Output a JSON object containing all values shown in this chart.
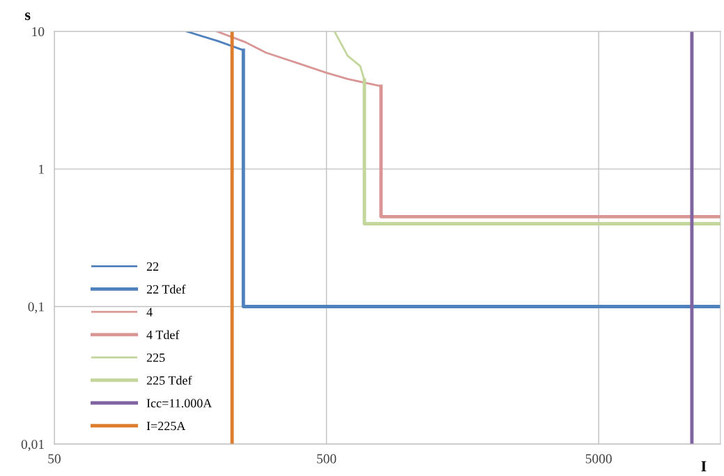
{
  "chart_data": {
    "type": "line",
    "xlabel": "I",
    "ylabel": "s",
    "log": "xy",
    "grid": true,
    "legend": "bottom left",
    "marker": "none",
    "line_style": "solid",
    "xlim": [
      50,
      14000
    ],
    "xticks": [
      50,
      500,
      5000
    ],
    "ylim": [
      0.01,
      10
    ],
    "yticks": [
      {
        "value": 0.01,
        "label": "0,01"
      },
      {
        "value": 0.1,
        "label": "0,1"
      },
      1,
      10
    ],
    "series": [
      {
        "name": "22",
        "color": "#4f81bd",
        "x": [
          153,
          200,
          247.5
        ],
        "values": [
          10,
          8.5,
          7.3
        ]
      },
      {
        "name": "22 Tdef",
        "color": "#4f81bd",
        "x": [
          247.5,
          247.5,
          14000
        ],
        "values": [
          7.3,
          0.1,
          0.1
        ]
      },
      {
        "name": "4",
        "color": "#d99694",
        "x": [
          198,
          250,
          300,
          400,
          500,
          600,
          793
        ],
        "values": [
          10,
          8.4,
          7.0,
          5.8,
          5.0,
          4.5,
          4.0
        ]
      },
      {
        "name": "4 Tdef",
        "color": "#d99694",
        "x": [
          793,
          793,
          14000
        ],
        "values": [
          4.0,
          0.45,
          0.45
        ]
      },
      {
        "name": "225",
        "color": "#c3d69b",
        "x": [
          535,
          598,
          665,
          689
        ],
        "values": [
          10,
          6.65,
          5.6,
          4.43
        ]
      },
      {
        "name": "225 Tdef",
        "color": "#c3d69b",
        "x": [
          689,
          689,
          14000
        ],
        "values": [
          4.43,
          0.4,
          0.4
        ]
      },
      {
        "name": "Icc=11.000A",
        "color": "#8064a2",
        "x": [
          11000,
          11000
        ],
        "values": [
          0.01,
          10
        ]
      },
      {
        "name": "I=225A",
        "color": "#dd7e2f",
        "x": [
          225,
          225
        ],
        "values": [
          0.01,
          10
        ]
      }
    ]
  }
}
